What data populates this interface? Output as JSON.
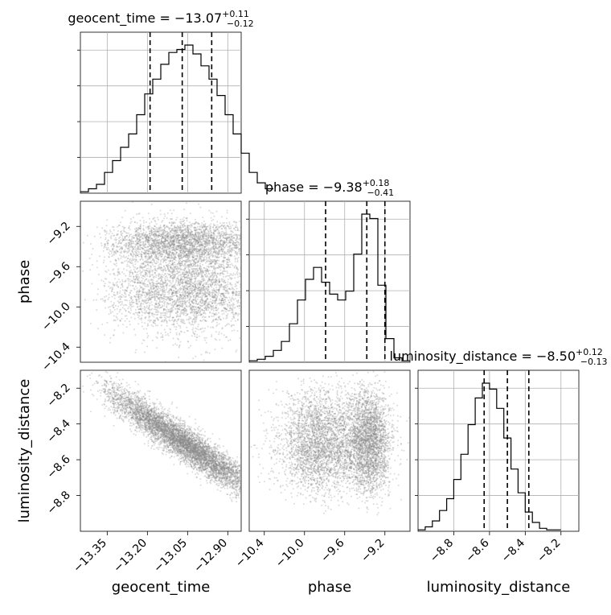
{
  "chart_data": {
    "type": "corner",
    "parameters": [
      "geocent_time",
      "phase",
      "luminosity_distance"
    ],
    "titles": [
      {
        "name": "geocent_time",
        "median": "−13.07",
        "upper": "+0.11",
        "lower": "−0.12"
      },
      {
        "name": "phase",
        "median": "−9.38",
        "upper": "+0.18",
        "lower": "−0.41"
      },
      {
        "name": "luminosity_distance",
        "median": "−8.50",
        "upper": "+0.12",
        "lower": "−0.13"
      }
    ],
    "ranges": {
      "geocent_time": [
        -13.45,
        -12.85
      ],
      "phase": [
        -10.55,
        -8.95
      ],
      "luminosity_distance": [
        -9.0,
        -8.1
      ]
    },
    "ticks": {
      "geocent_time": [
        -13.35,
        -13.2,
        -13.05,
        -12.9
      ],
      "phase": [
        -10.4,
        -10.0,
        -9.6,
        -9.2
      ],
      "luminosity_distance": [
        -8.8,
        -8.6,
        -8.4,
        -8.2
      ]
    },
    "tick_labels": {
      "geocent_time": [
        "−13.35",
        "−13.20",
        "−13.05",
        "−12.90"
      ],
      "phase": [
        "−10.4",
        "−10.0",
        "−9.6",
        "−9.2"
      ],
      "luminosity_distance": [
        "−8.8",
        "−8.6",
        "−8.4",
        "−8.2"
      ]
    },
    "quantiles": {
      "geocent_time": [
        -13.19,
        -13.07,
        -12.96
      ],
      "phase": [
        -9.79,
        -9.38,
        -9.2
      ],
      "luminosity_distance": [
        -8.63,
        -8.5,
        -8.38
      ]
    },
    "histograms": {
      "geocent_time": {
        "start": -13.45,
        "step": 0.03,
        "counts": [
          1,
          3,
          6,
          14,
          22,
          31,
          40,
          53,
          67,
          77,
          87,
          95,
          97,
          100,
          94,
          86,
          77,
          66,
          53,
          40,
          27,
          14,
          7,
          3
        ]
      },
      "phase": {
        "start": -10.55,
        "step": 0.08,
        "counts": [
          1,
          2,
          4,
          8,
          14,
          26,
          42,
          56,
          64,
          54,
          46,
          42,
          48,
          73,
          100,
          97,
          52,
          16,
          3,
          1
        ]
      },
      "luminosity_distance": {
        "start": -9.0,
        "step": 0.04,
        "counts": [
          1,
          3,
          7,
          14,
          22,
          35,
          52,
          72,
          90,
          100,
          96,
          83,
          63,
          42,
          26,
          13,
          6,
          2,
          1,
          1
        ]
      }
    },
    "grid": true,
    "scatter_seed": 20240517
  }
}
